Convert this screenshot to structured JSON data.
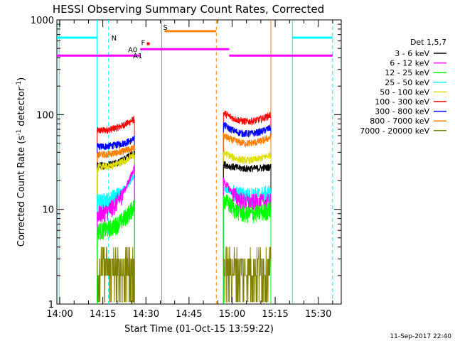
{
  "chart_data": {
    "type": "line",
    "title": "HESSI Observing Summary Count Rates, Corrected",
    "xlabel": "Start Time (01-Oct-15 13:59:22)",
    "ylabel_html": "Corrected Count Rate (s",
    "ylabel_sup1": "-1",
    "ylabel_mid": " detector",
    "ylabel_sup2": "-1",
    "ylabel_end": ")",
    "y_scale": "log",
    "ylim": [
      1,
      1000
    ],
    "xlim_minutes": [
      -1,
      98
    ],
    "x_ticks": [
      {
        "t": 0,
        "label": "14:00"
      },
      {
        "t": 15,
        "label": "14:15"
      },
      {
        "t": 30,
        "label": "14:30"
      },
      {
        "t": 45,
        "label": "14:45"
      },
      {
        "t": 60,
        "label": "15:00"
      },
      {
        "t": 75,
        "label": "15:15"
      },
      {
        "t": 90,
        "label": "15:30"
      }
    ],
    "y_ticks": [
      {
        "v": 1,
        "label": "1"
      },
      {
        "v": 10,
        "label": "10"
      },
      {
        "v": 100,
        "label": "100"
      },
      {
        "v": 1000,
        "label": "1000"
      }
    ],
    "legend": {
      "header": "Det 1,5,7",
      "placement": "right",
      "entries": [
        {
          "label": "3 - 6 keV",
          "color": "#000000"
        },
        {
          "label": "6 - 12 keV",
          "color": "#ff00ff"
        },
        {
          "label": "12 - 25 keV",
          "color": "#00ff00"
        },
        {
          "label": "25 - 50 keV",
          "color": "#00ffff"
        },
        {
          "label": "50 - 100 keV",
          "color": "#dddd00"
        },
        {
          "label": "100 - 300 keV",
          "color": "#ff0000"
        },
        {
          "label": "300 - 800 keV",
          "color": "#0000ff"
        },
        {
          "label": "800 - 7000 keV",
          "color": "#ff8000"
        },
        {
          "label": "7000 - 20000 keV",
          "color": "#808000"
        }
      ]
    },
    "intervals": [
      {
        "start": 13,
        "end": 26,
        "series": [
          {
            "name": "100 - 300 keV",
            "color": "#ff0000",
            "v0": 68,
            "v1": 90
          },
          {
            "name": "300 - 800 keV",
            "color": "#0000ff",
            "v0": 46,
            "v1": 55
          },
          {
            "name": "800 - 7000 keV",
            "color": "#ff8000",
            "v0": 38,
            "v1": 45
          },
          {
            "name": "3 - 6 keV",
            "color": "#000000",
            "v0": 29,
            "v1": 40
          },
          {
            "name": "50 - 100 keV",
            "color": "#dddd00",
            "v0": 28,
            "v1": 38
          },
          {
            "name": "25 - 50 keV",
            "color": "#00ffff",
            "v0": 12,
            "v1": 23
          },
          {
            "name": "6 - 12 keV",
            "color": "#ff00ff",
            "v0": 9,
            "v1": 28
          },
          {
            "name": "12 - 25 keV",
            "color": "#00ff00",
            "v0": 6,
            "v1": 11
          }
        ]
      },
      {
        "start": 57,
        "end": 73.5,
        "series": [
          {
            "name": "100 - 300 keV",
            "color": "#ff0000",
            "v0": 105,
            "v1": 100,
            "vmid": 85
          },
          {
            "name": "300 - 800 keV",
            "color": "#0000ff",
            "v0": 78,
            "v1": 73,
            "vmid": 63
          },
          {
            "name": "800 - 7000 keV",
            "color": "#ff8000",
            "v0": 60,
            "v1": 58,
            "vmid": 50
          },
          {
            "name": "50 - 100 keV",
            "color": "#dddd00",
            "v0": 40,
            "v1": 38,
            "vmid": 33
          },
          {
            "name": "3 - 6 keV",
            "color": "#000000",
            "v0": 30,
            "v1": 28,
            "vmid": 27
          },
          {
            "name": "25 - 50 keV",
            "color": "#00ffff",
            "v0": 17,
            "v1": 15,
            "vmid": 14
          },
          {
            "name": "6 - 12 keV",
            "color": "#ff00ff",
            "v0": 20,
            "v1": 12,
            "vmid": 12
          },
          {
            "name": "12 - 25 keV",
            "color": "#00ff00",
            "v0": 13,
            "v1": 10,
            "vmid": 9
          }
        ]
      }
    ],
    "flag_bars": [
      {
        "label": "N",
        "color": "#00ffff",
        "segments": [
          [
            -1,
            13
          ],
          [
            81,
            95
          ]
        ],
        "level": 650
      },
      {
        "label": "S",
        "color": "#ff8000",
        "segments": [
          [
            36.5,
            54.5
          ]
        ],
        "level": 760
      },
      {
        "label": "F",
        "color": "#ff0000",
        "segments": [
          [
            30.3,
            31.3
          ]
        ],
        "level": 560
      },
      {
        "label": "A0",
        "color": "#ff00ff",
        "segments": [
          [
            28,
            59
          ]
        ],
        "level": 490
      },
      {
        "label": "A1",
        "color": "#ff00ff",
        "segments": [
          [
            -1,
            28
          ],
          [
            59,
            95
          ]
        ],
        "level": 420
      }
    ],
    "vlines": [
      {
        "t": -0.2,
        "color": "#00ffff",
        "style": "solid"
      },
      {
        "t": 13,
        "color": "#00ffff",
        "style": "solid"
      },
      {
        "t": 17,
        "color": "#00ffff",
        "style": "dashed"
      },
      {
        "t": 35.5,
        "color": "#ff8000",
        "style": "solid"
      },
      {
        "t": 54.5,
        "color": "#ff8000",
        "style": "dashed"
      },
      {
        "t": 81,
        "color": "#00ffff",
        "style": "solid"
      },
      {
        "t": 95,
        "color": "#00ffff",
        "style": "dashed"
      },
      {
        "t": 73.5,
        "color": "#ff8000",
        "style": "solid"
      }
    ]
  },
  "footer": {
    "timestamp": "11-Sep-2017 22:40"
  }
}
